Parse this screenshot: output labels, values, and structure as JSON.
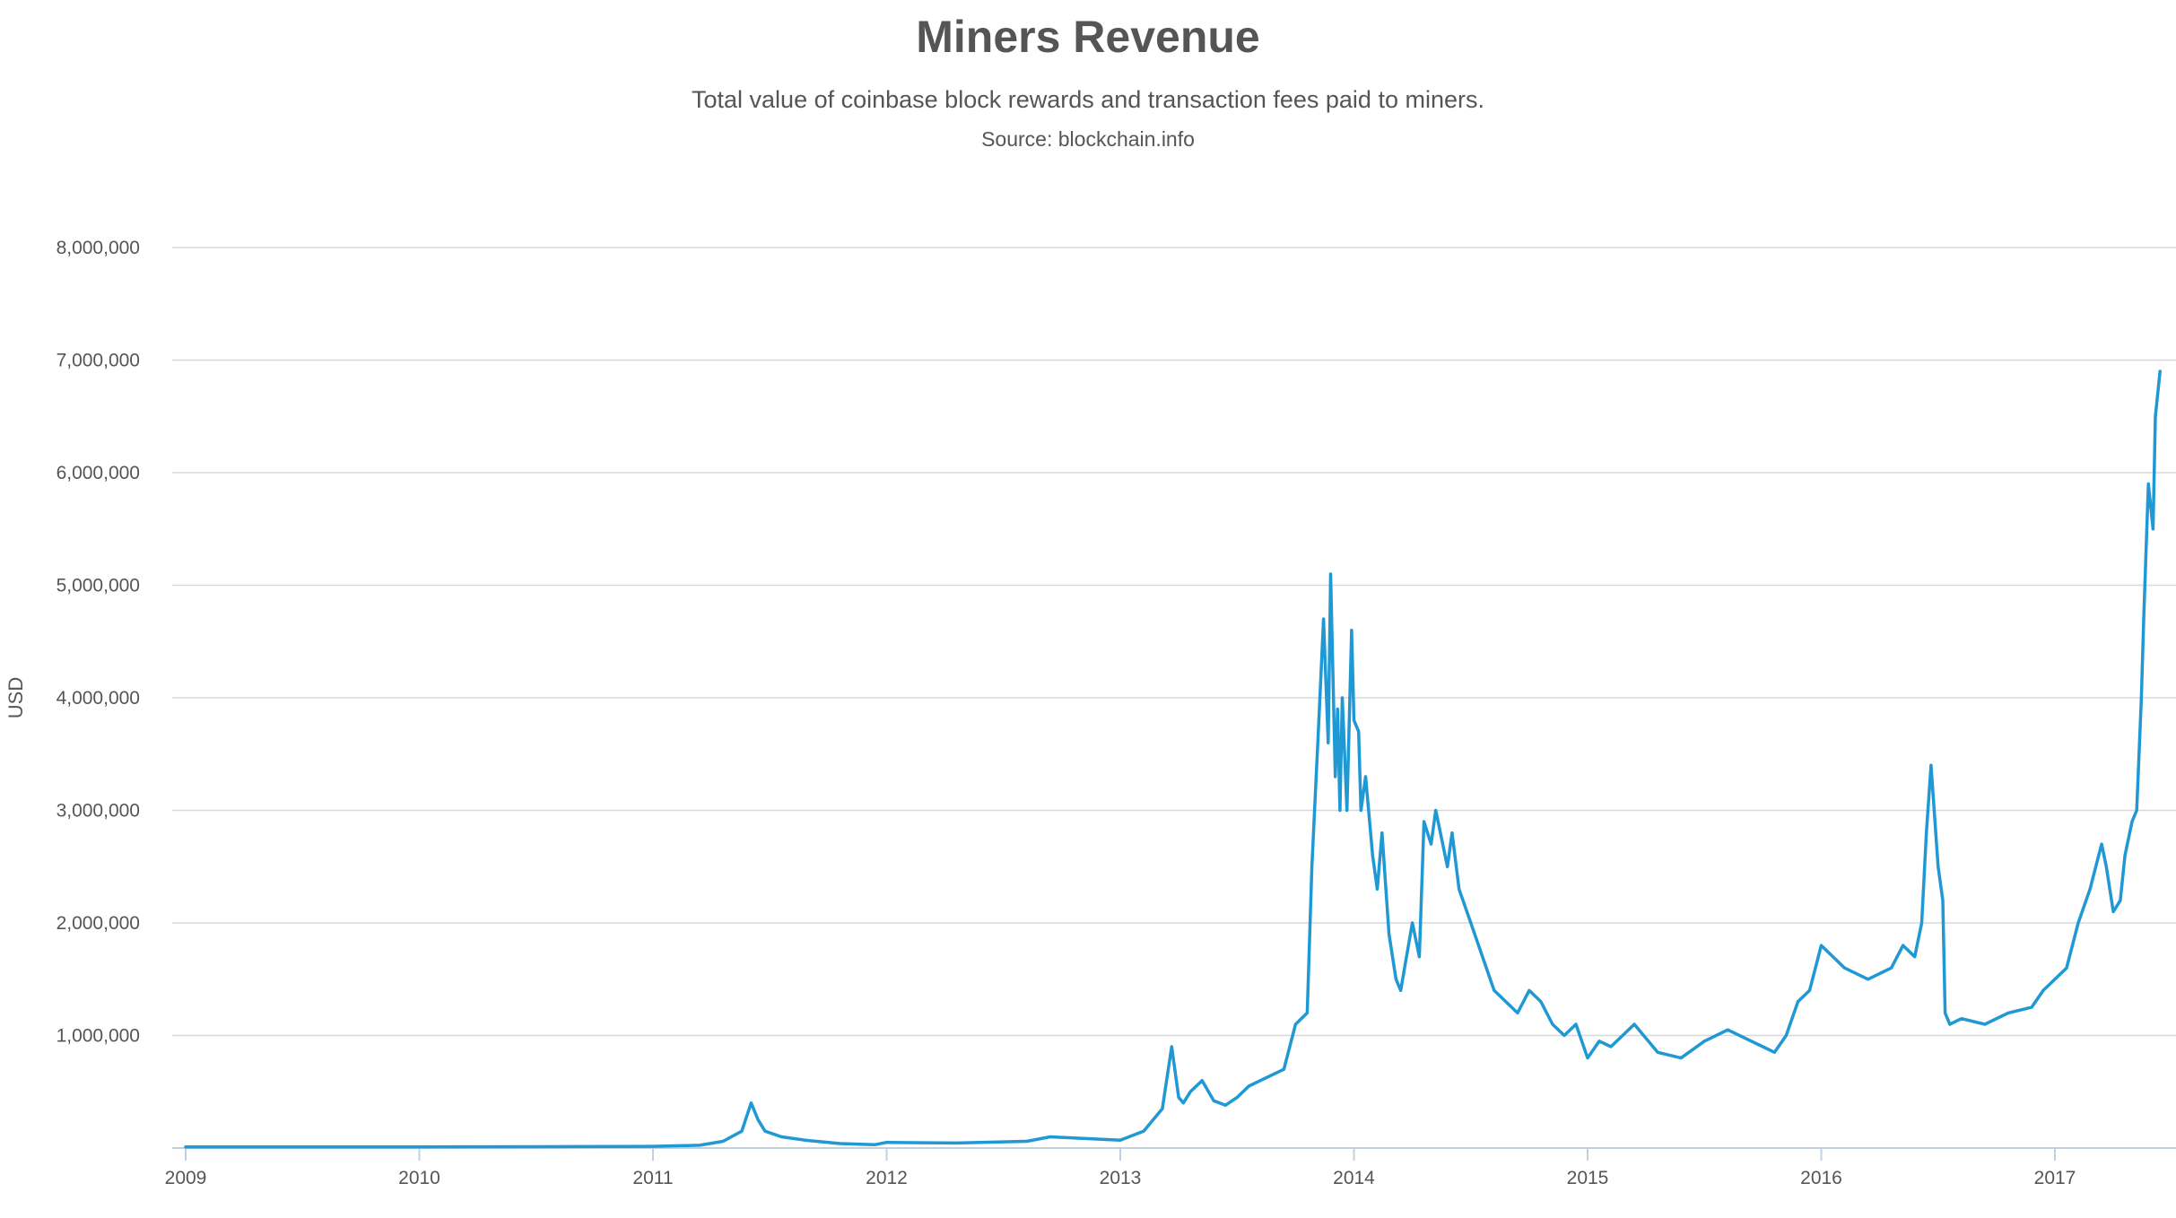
{
  "chart_data": {
    "type": "line",
    "title": "Miners Revenue",
    "subtitle": "Total value of coinbase block rewards and transaction fees paid to miners.",
    "source": "Source: blockchain.info",
    "ylabel": "USD",
    "xlabel": "",
    "ylim": [
      0,
      8000000
    ],
    "xlim": [
      2009.0,
      2017.5
    ],
    "y_ticks": [
      1000000,
      2000000,
      3000000,
      4000000,
      5000000,
      6000000,
      7000000,
      8000000
    ],
    "y_tick_labels": [
      "1,000,000",
      "2,000,000",
      "3,000,000",
      "4,000,000",
      "5,000,000",
      "6,000,000",
      "7,000,000",
      "8,000,000"
    ],
    "x_ticks": [
      2009,
      2010,
      2011,
      2012,
      2013,
      2014,
      2015,
      2016,
      2017
    ],
    "x_tick_labels": [
      "2009",
      "2010",
      "2011",
      "2012",
      "2013",
      "2014",
      "2015",
      "2016",
      "2017"
    ],
    "grid": "horizontal",
    "legend": "none",
    "line_color": "#1f98d4",
    "grid_color": "#d8d8d8",
    "axis_color": "#c0d0e0",
    "series": [
      {
        "x": [
          2009.0,
          2009.5,
          2010.0,
          2010.5,
          2011.0,
          2011.2,
          2011.3,
          2011.38,
          2011.42,
          2011.45,
          2011.48,
          2011.55,
          2011.65,
          2011.8,
          2011.95,
          2012.0,
          2012.3,
          2012.6,
          2012.7,
          2012.9,
          2013.0,
          2013.1,
          2013.18,
          2013.22,
          2013.25,
          2013.27,
          2013.3,
          2013.35,
          2013.4,
          2013.45,
          2013.5,
          2013.55,
          2013.6,
          2013.65,
          2013.7,
          2013.75,
          2013.8,
          2013.82,
          2013.85,
          2013.87,
          2013.89,
          2013.9,
          2013.91,
          2013.92,
          2013.93,
          2013.94,
          2013.95,
          2013.97,
          2013.99,
          2014.0,
          2014.02,
          2014.03,
          2014.05,
          2014.08,
          2014.1,
          2014.12,
          2014.15,
          2014.18,
          2014.2,
          2014.25,
          2014.28,
          2014.3,
          2014.33,
          2014.35,
          2014.4,
          2014.42,
          2014.45,
          2014.5,
          2014.55,
          2014.6,
          2014.65,
          2014.7,
          2014.75,
          2014.8,
          2014.85,
          2014.9,
          2014.95,
          2015.0,
          2015.05,
          2015.1,
          2015.2,
          2015.3,
          2015.4,
          2015.5,
          2015.6,
          2015.7,
          2015.75,
          2015.8,
          2015.85,
          2015.9,
          2015.95,
          2016.0,
          2016.1,
          2016.2,
          2016.3,
          2016.35,
          2016.4,
          2016.43,
          2016.45,
          2016.47,
          2016.5,
          2016.52,
          2016.53,
          2016.55,
          2016.6,
          2016.7,
          2016.8,
          2016.9,
          2016.95,
          2017.0,
          2017.05,
          2017.1,
          2017.15,
          2017.2,
          2017.22,
          2017.25,
          2017.28,
          2017.3,
          2017.33,
          2017.35,
          2017.37,
          2017.38,
          2017.4,
          2017.42,
          2017.43,
          2017.45
        ],
        "y": [
          10000,
          10000,
          10000,
          12000,
          15000,
          25000,
          60000,
          150000,
          400000,
          250000,
          150000,
          100000,
          70000,
          40000,
          30000,
          50000,
          45000,
          60000,
          100000,
          80000,
          70000,
          150000,
          350000,
          900000,
          450000,
          400000,
          500000,
          600000,
          420000,
          380000,
          450000,
          550000,
          600000,
          650000,
          700000,
          1100000,
          1200000,
          2500000,
          3800000,
          4700000,
          3600000,
          5100000,
          4200000,
          3300000,
          3900000,
          3000000,
          4000000,
          3000000,
          4600000,
          3800000,
          3700000,
          3000000,
          3300000,
          2600000,
          2300000,
          2800000,
          1900000,
          1500000,
          1400000,
          2000000,
          1700000,
          2900000,
          2700000,
          3000000,
          2500000,
          2800000,
          2300000,
          2000000,
          1700000,
          1400000,
          1300000,
          1200000,
          1400000,
          1300000,
          1100000,
          1000000,
          1100000,
          800000,
          950000,
          900000,
          1100000,
          850000,
          800000,
          950000,
          1050000,
          950000,
          900000,
          850000,
          1000000,
          1300000,
          1400000,
          1800000,
          1600000,
          1500000,
          1600000,
          1800000,
          1700000,
          2000000,
          2800000,
          3400000,
          2500000,
          2200000,
          1200000,
          1100000,
          1150000,
          1100000,
          1200000,
          1250000,
          1400000,
          1500000,
          1600000,
          2000000,
          2300000,
          2700000,
          2500000,
          2100000,
          2200000,
          2600000,
          2900000,
          3000000,
          4000000,
          4700000,
          5900000,
          5500000,
          6500000,
          6900000
        ]
      }
    ]
  }
}
